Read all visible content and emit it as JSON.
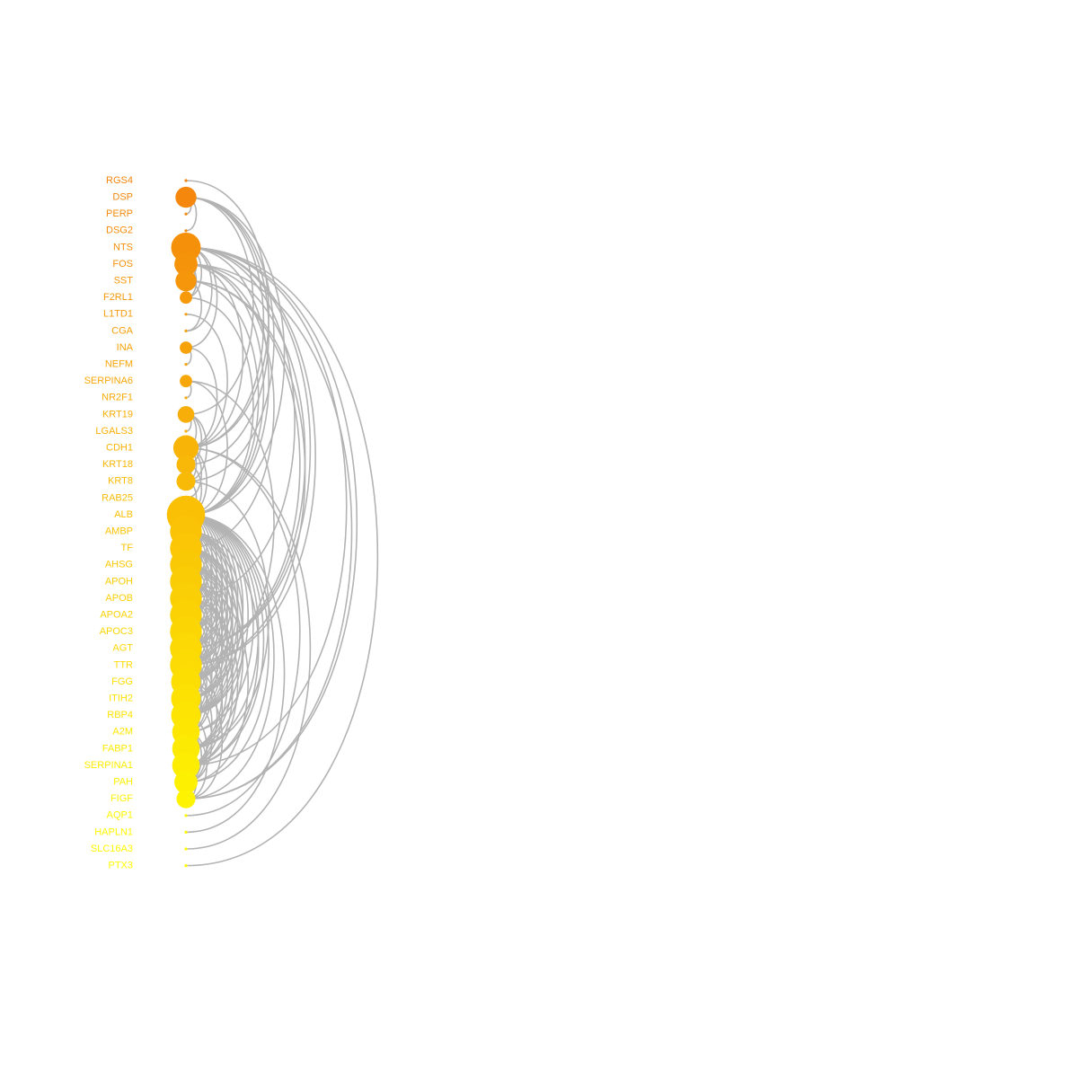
{
  "diagram": {
    "type": "arc-network",
    "edge_color": "#b3b3b3",
    "color_scale": {
      "start": "#f4840c",
      "end": "#ffff00"
    },
    "nodes": [
      {
        "label": "RGS4",
        "degree": 0
      },
      {
        "label": "DSP",
        "degree": 6
      },
      {
        "label": "PERP",
        "degree": 0
      },
      {
        "label": "DSG2",
        "degree": 0
      },
      {
        "label": "NTS",
        "degree": 10
      },
      {
        "label": "FOS",
        "degree": 7
      },
      {
        "label": "SST",
        "degree": 6
      },
      {
        "label": "F2RL1",
        "degree": 2
      },
      {
        "label": "L1TD1",
        "degree": 0
      },
      {
        "label": "CGA",
        "degree": 0
      },
      {
        "label": "INA",
        "degree": 2
      },
      {
        "label": "NEFM",
        "degree": 0
      },
      {
        "label": "SERPINA6",
        "degree": 2
      },
      {
        "label": "NR2F1",
        "degree": 0
      },
      {
        "label": "KRT19",
        "degree": 4
      },
      {
        "label": "LGALS3",
        "degree": 0
      },
      {
        "label": "CDH1",
        "degree": 8
      },
      {
        "label": "KRT18",
        "degree": 5
      },
      {
        "label": "KRT8",
        "degree": 5
      },
      {
        "label": "RAB25",
        "degree": 0
      },
      {
        "label": "ALB",
        "degree": 14
      },
      {
        "label": "AMBP",
        "degree": 11
      },
      {
        "label": "TF",
        "degree": 11
      },
      {
        "label": "AHSG",
        "degree": 11
      },
      {
        "label": "APOH",
        "degree": 11
      },
      {
        "label": "APOB",
        "degree": 11
      },
      {
        "label": "APOA2",
        "degree": 11
      },
      {
        "label": "APOC3",
        "degree": 11
      },
      {
        "label": "AGT",
        "degree": 11
      },
      {
        "label": "TTR",
        "degree": 11
      },
      {
        "label": "FGG",
        "degree": 10
      },
      {
        "label": "ITIH2",
        "degree": 10
      },
      {
        "label": "RBP4",
        "degree": 10
      },
      {
        "label": "A2M",
        "degree": 9
      },
      {
        "label": "FABP1",
        "degree": 9
      },
      {
        "label": "SERPINA1",
        "degree": 9
      },
      {
        "label": "PAH",
        "degree": 7
      },
      {
        "label": "FIGF",
        "degree": 5
      },
      {
        "label": "AQP1",
        "degree": 0
      },
      {
        "label": "HAPLN1",
        "degree": 0
      },
      {
        "label": "SLC16A3",
        "degree": 0
      },
      {
        "label": "PTX3",
        "degree": 0
      }
    ],
    "edges": [
      [
        "RGS4",
        "CDH1"
      ],
      [
        "DSP",
        "PERP"
      ],
      [
        "DSP",
        "DSG2"
      ],
      [
        "DSP",
        "KRT19"
      ],
      [
        "DSP",
        "KRT18"
      ],
      [
        "DSP",
        "KRT8"
      ],
      [
        "DSP",
        "CDH1"
      ],
      [
        "DSP",
        "ALB"
      ],
      [
        "NTS",
        "FOS"
      ],
      [
        "NTS",
        "SST"
      ],
      [
        "NTS",
        "F2RL1"
      ],
      [
        "NTS",
        "CGA"
      ],
      [
        "NTS",
        "INA"
      ],
      [
        "NTS",
        "ALB"
      ],
      [
        "NTS",
        "AGT"
      ],
      [
        "NTS",
        "APOB"
      ],
      [
        "NTS",
        "TTR"
      ],
      [
        "NTS",
        "SERPINA1"
      ],
      [
        "NTS",
        "PTX3"
      ],
      [
        "NTS",
        "FIGF"
      ],
      [
        "FOS",
        "SST"
      ],
      [
        "FOS",
        "F2RL1"
      ],
      [
        "FOS",
        "CDH1"
      ],
      [
        "FOS",
        "ALB"
      ],
      [
        "FOS",
        "AGT"
      ],
      [
        "FOS",
        "TF"
      ],
      [
        "FOS",
        "FIGF"
      ],
      [
        "SST",
        "ALB"
      ],
      [
        "SST",
        "TTR"
      ],
      [
        "SST",
        "AGT"
      ],
      [
        "SST",
        "CGA"
      ],
      [
        "F2RL1",
        "ALB"
      ],
      [
        "L1TD1",
        "CDH1"
      ],
      [
        "INA",
        "NEFM"
      ],
      [
        "INA",
        "CDH1"
      ],
      [
        "SERPINA6",
        "NR2F1"
      ],
      [
        "SERPINA6",
        "ALB"
      ],
      [
        "SERPINA6",
        "TTR"
      ],
      [
        "KRT19",
        "LGALS3"
      ],
      [
        "KRT19",
        "CDH1"
      ],
      [
        "KRT19",
        "KRT18"
      ],
      [
        "KRT19",
        "KRT8"
      ],
      [
        "CDH1",
        "KRT18"
      ],
      [
        "CDH1",
        "KRT8"
      ],
      [
        "CDH1",
        "RAB25"
      ],
      [
        "CDH1",
        "ALB"
      ],
      [
        "CDH1",
        "AQP1"
      ],
      [
        "CDH1",
        "SLC16A3"
      ],
      [
        "KRT18",
        "KRT8"
      ],
      [
        "KRT18",
        "ALB"
      ],
      [
        "KRT8",
        "ALB"
      ],
      [
        "KRT8",
        "FABP1"
      ],
      [
        "RAB25",
        "ALB"
      ],
      [
        "ALB",
        "AMBP"
      ],
      [
        "ALB",
        "TF"
      ],
      [
        "ALB",
        "AHSG"
      ],
      [
        "ALB",
        "APOH"
      ],
      [
        "ALB",
        "APOB"
      ],
      [
        "ALB",
        "APOA2"
      ],
      [
        "ALB",
        "APOC3"
      ],
      [
        "ALB",
        "AGT"
      ],
      [
        "ALB",
        "TTR"
      ],
      [
        "ALB",
        "FGG"
      ],
      [
        "ALB",
        "ITIH2"
      ],
      [
        "ALB",
        "RBP4"
      ],
      [
        "ALB",
        "A2M"
      ],
      [
        "ALB",
        "FABP1"
      ],
      [
        "ALB",
        "SERPINA1"
      ],
      [
        "ALB",
        "PAH"
      ],
      [
        "ALB",
        "FIGF"
      ],
      [
        "ALB",
        "HAPLN1"
      ],
      [
        "AMBP",
        "TF"
      ],
      [
        "AMBP",
        "AHSG"
      ],
      [
        "AMBP",
        "APOH"
      ],
      [
        "AMBP",
        "APOB"
      ],
      [
        "AMBP",
        "APOA2"
      ],
      [
        "AMBP",
        "APOC3"
      ],
      [
        "AMBP",
        "AGT"
      ],
      [
        "AMBP",
        "TTR"
      ],
      [
        "AMBP",
        "FGG"
      ],
      [
        "AMBP",
        "ITIH2"
      ],
      [
        "AMBP",
        "RBP4"
      ],
      [
        "AMBP",
        "SERPINA1"
      ],
      [
        "TF",
        "AHSG"
      ],
      [
        "TF",
        "APOH"
      ],
      [
        "TF",
        "APOB"
      ],
      [
        "TF",
        "APOA2"
      ],
      [
        "TF",
        "APOC3"
      ],
      [
        "TF",
        "AGT"
      ],
      [
        "TF",
        "TTR"
      ],
      [
        "TF",
        "FGG"
      ],
      [
        "TF",
        "ITIH2"
      ],
      [
        "TF",
        "RBP4"
      ],
      [
        "TF",
        "A2M"
      ],
      [
        "AHSG",
        "APOH"
      ],
      [
        "AHSG",
        "APOB"
      ],
      [
        "AHSG",
        "APOA2"
      ],
      [
        "AHSG",
        "APOC3"
      ],
      [
        "AHSG",
        "AGT"
      ],
      [
        "AHSG",
        "TTR"
      ],
      [
        "AHSG",
        "FGG"
      ],
      [
        "AHSG",
        "ITIH2"
      ],
      [
        "AHSG",
        "RBP4"
      ],
      [
        "AHSG",
        "FABP1"
      ],
      [
        "APOH",
        "APOB"
      ],
      [
        "APOH",
        "APOA2"
      ],
      [
        "APOH",
        "APOC3"
      ],
      [
        "APOH",
        "AGT"
      ],
      [
        "APOH",
        "TTR"
      ],
      [
        "APOH",
        "FGG"
      ],
      [
        "APOH",
        "ITIH2"
      ],
      [
        "APOH",
        "RBP4"
      ],
      [
        "APOH",
        "PAH"
      ],
      [
        "APOB",
        "APOA2"
      ],
      [
        "APOB",
        "APOC3"
      ],
      [
        "APOB",
        "AGT"
      ],
      [
        "APOB",
        "TTR"
      ],
      [
        "APOB",
        "FGG"
      ],
      [
        "APOB",
        "RBP4"
      ],
      [
        "APOB",
        "FABP1"
      ],
      [
        "APOB",
        "SERPINA1"
      ],
      [
        "APOA2",
        "APOC3"
      ],
      [
        "APOA2",
        "AGT"
      ],
      [
        "APOA2",
        "TTR"
      ],
      [
        "APOA2",
        "FGG"
      ],
      [
        "APOA2",
        "RBP4"
      ],
      [
        "APOA2",
        "FABP1"
      ],
      [
        "APOA2",
        "SERPINA1"
      ],
      [
        "APOC3",
        "AGT"
      ],
      [
        "APOC3",
        "TTR"
      ],
      [
        "APOC3",
        "FGG"
      ],
      [
        "APOC3",
        "ITIH2"
      ],
      [
        "APOC3",
        "RBP4"
      ],
      [
        "APOC3",
        "FABP1"
      ],
      [
        "AGT",
        "TTR"
      ],
      [
        "AGT",
        "FGG"
      ],
      [
        "AGT",
        "ITIH2"
      ],
      [
        "AGT",
        "RBP4"
      ],
      [
        "AGT",
        "A2M"
      ],
      [
        "AGT",
        "SERPINA1"
      ],
      [
        "TTR",
        "FGG"
      ],
      [
        "TTR",
        "ITIH2"
      ],
      [
        "TTR",
        "RBP4"
      ],
      [
        "TTR",
        "A2M"
      ],
      [
        "TTR",
        "SERPINA1"
      ],
      [
        "FGG",
        "ITIH2"
      ],
      [
        "FGG",
        "RBP4"
      ],
      [
        "FGG",
        "A2M"
      ],
      [
        "FGG",
        "SERPINA1"
      ],
      [
        "FGG",
        "FIGF"
      ],
      [
        "ITIH2",
        "RBP4"
      ],
      [
        "ITIH2",
        "A2M"
      ],
      [
        "ITIH2",
        "PAH"
      ],
      [
        "RBP4",
        "A2M"
      ],
      [
        "RBP4",
        "FABP1"
      ],
      [
        "RBP4",
        "PAH"
      ],
      [
        "A2M",
        "FABP1"
      ],
      [
        "A2M",
        "SERPINA1"
      ],
      [
        "A2M",
        "PAH"
      ],
      [
        "A2M",
        "FIGF"
      ],
      [
        "FABP1",
        "SERPINA1"
      ],
      [
        "FABP1",
        "PAH"
      ],
      [
        "SERPINA1",
        "PAH"
      ],
      [
        "SERPINA1",
        "FIGF"
      ],
      [
        "PAH",
        "FIGF"
      ]
    ]
  }
}
